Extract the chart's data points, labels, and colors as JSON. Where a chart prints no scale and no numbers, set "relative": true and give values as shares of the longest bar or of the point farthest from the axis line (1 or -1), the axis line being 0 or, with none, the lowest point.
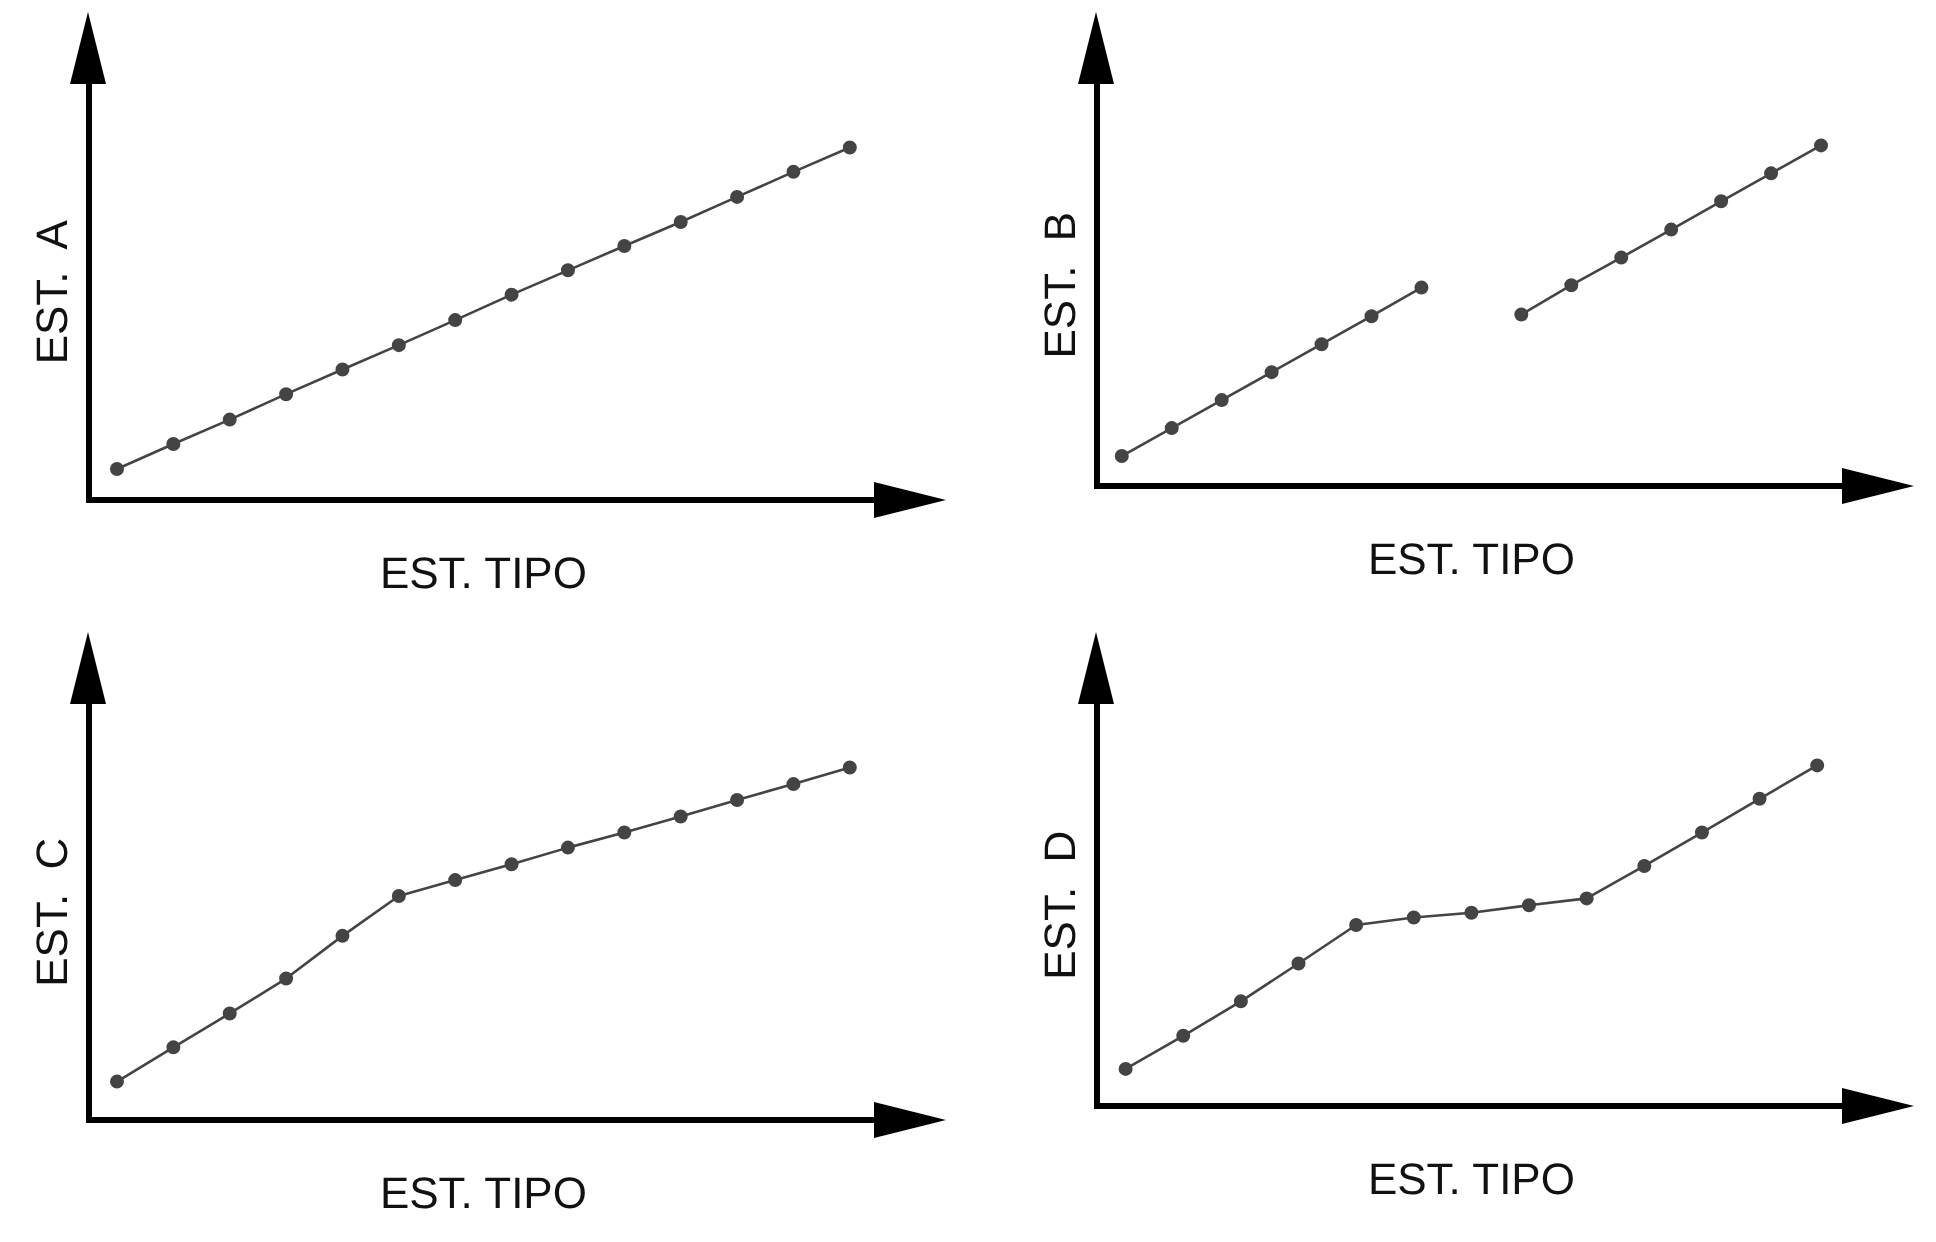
{
  "chart_data": [
    {
      "type": "line",
      "xlabel": "EST. TIPO",
      "ylabel": "EST.  A",
      "relative": true,
      "marker": "circle",
      "color": "#444444",
      "categories": [
        null,
        null,
        null,
        null,
        null,
        null,
        null,
        null,
        null,
        null,
        null,
        null,
        null,
        null
      ],
      "values": [
        0.089,
        0.16,
        0.229,
        0.301,
        0.371,
        0.44,
        0.511,
        0.583,
        0.652,
        0.721,
        0.789,
        0.86,
        0.931,
        1
      ]
    },
    {
      "type": "line",
      "xlabel": "EST. TIPO",
      "ylabel": "EST.  B",
      "relative": true,
      "marker": "circle",
      "categories": [
        null,
        null,
        null,
        null,
        null,
        null,
        null,
        null,
        null,
        null,
        null,
        null,
        null,
        null,
        null
      ],
      "series": [
        {
          "color": "#444444",
          "values": [
            0.089,
            0.171,
            0.253,
            0.335,
            0.417,
            0.499,
            0.583,
            null,
            null,
            null,
            null,
            null,
            null,
            null,
            null
          ]
        },
        {
          "color": "#444444",
          "values": [
            null,
            null,
            null,
            null,
            null,
            null,
            null,
            null,
            0.504,
            0.59,
            0.671,
            0.753,
            0.836,
            0.918,
            1
          ]
        }
      ]
    },
    {
      "type": "line",
      "xlabel": "EST. TIPO",
      "ylabel": "EST.  C",
      "relative": true,
      "marker": "circle",
      "color": "#444444",
      "categories": [
        null,
        null,
        null,
        null,
        null,
        null,
        null,
        null,
        null,
        null,
        null,
        null,
        null,
        null
      ],
      "values": [
        0.11,
        0.207,
        0.303,
        0.402,
        0.523,
        0.636,
        0.681,
        0.726,
        0.773,
        0.816,
        0.861,
        0.908,
        0.953,
        1
      ]
    },
    {
      "type": "line",
      "xlabel": "EST. TIPO",
      "ylabel": "EST.  D",
      "relative": true,
      "marker": "circle",
      "color": "#444444",
      "categories": [
        null,
        null,
        null,
        null,
        null,
        null,
        null,
        null,
        null,
        null,
        null,
        null,
        null
      ],
      "values": [
        0.11,
        0.207,
        0.308,
        0.419,
        0.532,
        0.554,
        0.568,
        0.59,
        0.61,
        0.705,
        0.803,
        0.902,
        1
      ]
    }
  ]
}
